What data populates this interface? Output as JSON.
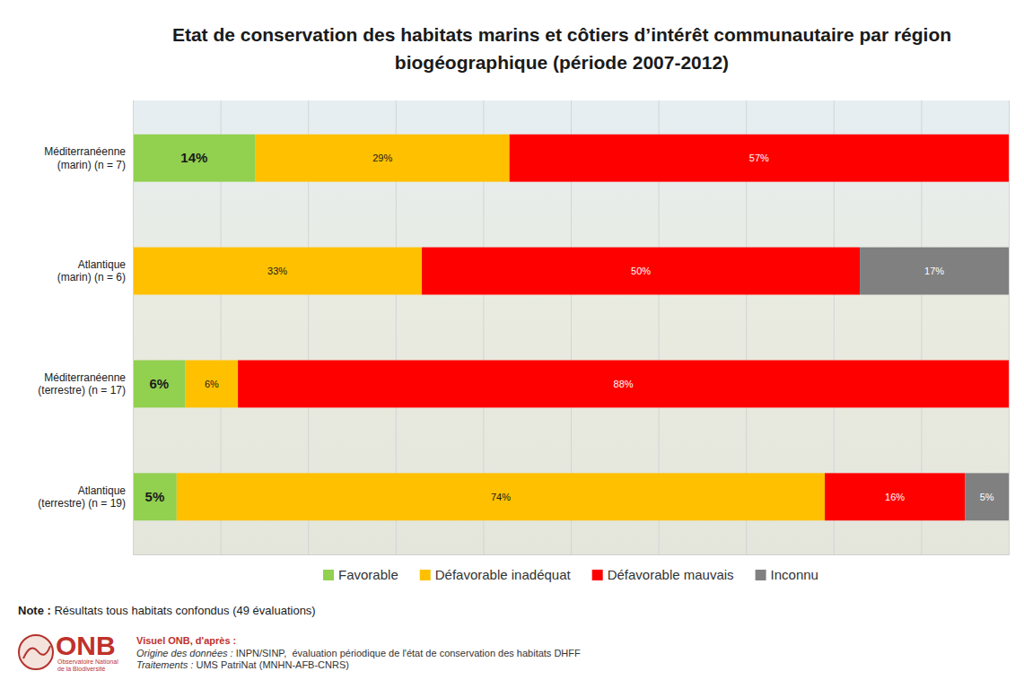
{
  "chart_data": {
    "type": "bar",
    "orientation": "horizontal",
    "stacked": true,
    "title": "Etat de conservation des habitats marins et côtiers d’intérêt communautaire par région biogéographique (période 2007-2012)",
    "categories": [
      "Méditerranéenne (marin) (n = 7)",
      "Atlantique (marin) (n = 6)",
      "Méditerranéenne (terrestre) (n = 17)",
      "Atlantique (terrestre) (n = 19)"
    ],
    "series": [
      {
        "name": "Favorable",
        "color": "#92d050",
        "values": [
          14,
          null,
          6,
          5
        ],
        "value_labels": [
          "14%",
          null,
          "6%",
          "5%"
        ]
      },
      {
        "name": "Défavorable inadéquat",
        "color": "#ffc000",
        "values": [
          29,
          33,
          6,
          74
        ],
        "value_labels": [
          "29%",
          "33%",
          "6%",
          "74%"
        ]
      },
      {
        "name": "Défavorable mauvais",
        "color": "#ff0000",
        "values": [
          57,
          50,
          88,
          16
        ],
        "value_labels": [
          "57%",
          "50%",
          "88%",
          "16%"
        ]
      },
      {
        "name": "Inconnu",
        "color": "#808080",
        "values": [
          null,
          17,
          null,
          5
        ],
        "value_labels": [
          null,
          "17%",
          null,
          "5%"
        ]
      }
    ],
    "xlim": [
      0,
      100
    ],
    "xticks": [
      0,
      10,
      20,
      30,
      40,
      50,
      60,
      70,
      80,
      90,
      100
    ],
    "grid": true,
    "tick_labels": false,
    "data_labels": true,
    "legend": "bottom",
    "note": "Note : Résultats tous habitats confondus (49 évaluations)",
    "source": {
      "logo": "ONB",
      "logo_subtitle": "Observatoire National de la Biodiversité",
      "credit": "Visuel ONB, d'après :",
      "lines": [
        "Origine des données : INPN/SINP,  évaluation périodique de l'état de conservation des habitats DHFF",
        "Traitements : UMS PatriNat (MNHN-AFB-CNRS)"
      ]
    }
  }
}
